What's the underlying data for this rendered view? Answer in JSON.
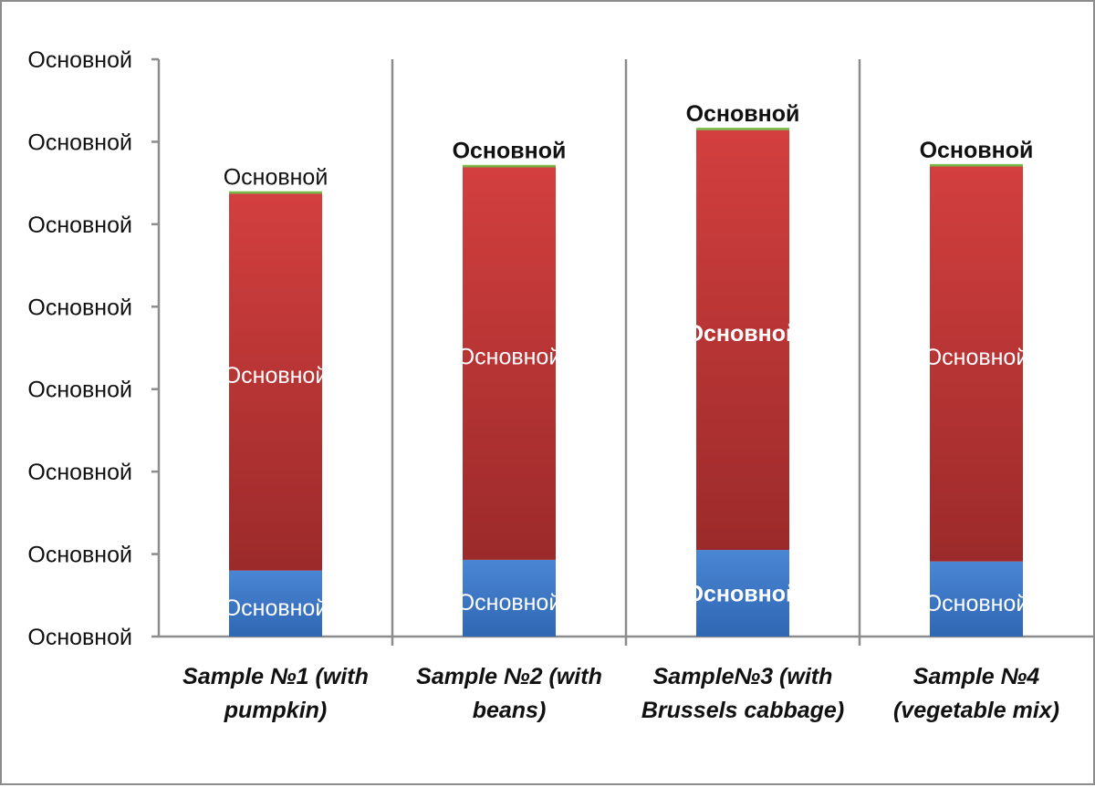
{
  "chart_data": {
    "type": "bar",
    "stacked": true,
    "categories": [
      "Sample №1 (with pumpkin)",
      "Sample №2 (with beans)",
      "Sample№3 (with Brussels cabbage)",
      "Sample №4 (vegetable mix)"
    ],
    "category_lines": [
      [
        "Sample №1 (with",
        "pumpkin)"
      ],
      [
        "Sample №2 (with",
        "beans)"
      ],
      [
        "Sample№3 (with",
        "Brussels cabbage)"
      ],
      [
        "Sample №4",
        "(vegetable mix)"
      ]
    ],
    "y_tick_labels": [
      "Основной",
      "Основной",
      "Основной",
      "Основной",
      "Основной",
      "Основной",
      "Основной",
      "Основной"
    ],
    "ylim": [
      0,
      7
    ],
    "series": [
      {
        "values": [
          0.8,
          0.93,
          1.05,
          0.91
        ],
        "color": "#3d78c6",
        "data_labels": [
          "Основной",
          "Основной",
          "Основной",
          "Основной"
        ]
      },
      {
        "values": [
          4.57,
          4.76,
          5.09,
          4.79
        ],
        "color": "#c9383a",
        "data_labels": [
          "Основной",
          "Основной",
          "Основной",
          "Основной"
        ]
      },
      {
        "values": [
          0.03,
          0.03,
          0.03,
          0.03
        ],
        "color": "#79b84a",
        "data_labels": [
          "Основной",
          "Основной",
          "Основной",
          "Основной"
        ]
      }
    ],
    "grid": false,
    "legend": "none"
  }
}
